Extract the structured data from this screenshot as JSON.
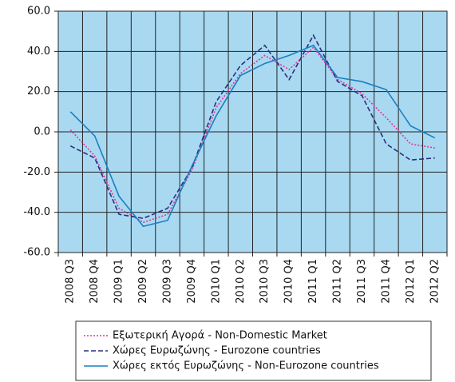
{
  "chart_data": {
    "type": "line",
    "categories": [
      "2008 Q3",
      "2008 Q4",
      "2009 Q1",
      "2009 Q2",
      "2009 Q3",
      "2009 Q4",
      "2010 Q1",
      "2010 Q2",
      "2010 Q3",
      "2010 Q4",
      "2011 Q1",
      "2011 Q2",
      "2011 Q3",
      "2011 Q4",
      "2012 Q1",
      "2012 Q2"
    ],
    "series": [
      {
        "name": "Εξωτερική Αγορά - Non-Domestic Market",
        "color": "#e0369c",
        "dash": "dotted",
        "values": [
          1,
          -12,
          -38,
          -45,
          -41,
          -19,
          12,
          29,
          38,
          31,
          42,
          26,
          19,
          7,
          -6,
          -8
        ]
      },
      {
        "name": "Χώρες Ευρωζώνης - Eurozone countries",
        "color": "#2b2f7f",
        "dash": "dashed",
        "values": [
          -7,
          -13,
          -41,
          -43,
          -38,
          -18,
          15,
          33,
          43,
          26,
          48,
          25,
          18,
          -6,
          -14,
          -13
        ]
      },
      {
        "name": "Χώρες εκτός Ευρωζώνης - Non-Eurozone countries",
        "color": "#1a7fc0",
        "dash": "solid",
        "values": [
          10,
          -2,
          -32,
          -47,
          -44,
          -17,
          8,
          28,
          34,
          38,
          43,
          27,
          25,
          21,
          3,
          -3
        ]
      }
    ],
    "ylim": [
      -60,
      60
    ],
    "yticks": [
      {
        "value": -60,
        "label": "-60.0"
      },
      {
        "value": -40,
        "label": "-40.0"
      },
      {
        "value": -20,
        "label": "-20.0"
      },
      {
        "value": 0,
        "label": "0.0"
      },
      {
        "value": 20,
        "label": "20.0"
      },
      {
        "value": 40,
        "label": "40.0"
      },
      {
        "value": 60,
        "label": "60.0"
      }
    ],
    "grid": true,
    "plot_background": "#a9d9f1"
  }
}
